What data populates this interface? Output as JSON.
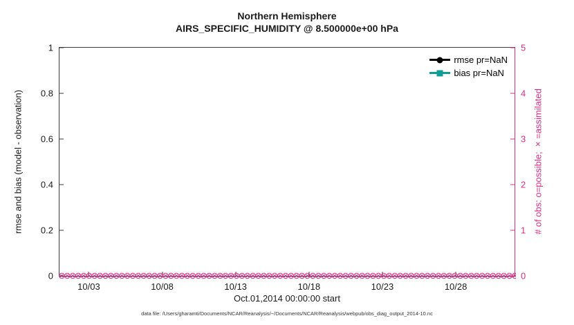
{
  "chart_data": {
    "type": "line",
    "title": "Northern Hemisphere",
    "subtitle": "AIRS_SPECIFIC_HUMIDITY @ 8.500000e+00 hPa",
    "xlabel": "Oct.01,2014 00:00:00 start",
    "ylabel_left": "rmse and bias (model - observation)",
    "ylabel_right": "# of obs: o=possible; ×=assimilated",
    "ylim_left": [
      0,
      1
    ],
    "yticks_left": [
      "0",
      "0.2",
      "0.4",
      "0.6",
      "0.8",
      "1"
    ],
    "ylim_right": [
      0,
      5
    ],
    "yticks_right": [
      "0",
      "1",
      "2",
      "3",
      "4",
      "5"
    ],
    "xticks": [
      "10/03",
      "10/08",
      "10/13",
      "10/18",
      "10/23",
      "10/28"
    ],
    "xtick_day_offsets": [
      2,
      7,
      12,
      17,
      22,
      27
    ],
    "x_axis_total_days": 31,
    "grid": "off",
    "legend_position": "top-right-inside",
    "series": [
      {
        "name": "rmse pr=NaN",
        "color": "#000000",
        "marker": "circle",
        "values": "NaN"
      },
      {
        "name": "bias pr=NaN",
        "color": "#0e9e93",
        "marker": "square",
        "values": "NaN"
      }
    ],
    "obs_counts": {
      "description": "# of obs possible (o) and assimilated (x) markers plotted at 0 on right axis for every time bin across the whole month",
      "value_right_axis": 0,
      "marker_glyph": "⊗",
      "marker_repeat": 110,
      "color": "#d92c84"
    },
    "colors": {
      "left_axis": "#1a1a1a",
      "right_axis": "#d92c84"
    }
  },
  "footer": {
    "data_file_caption": "data file: /Users/gharamti/Documents/NCAR/Reanalysis/~/Documents/NCAR/Reanalysis/webpub/obs_diag_output_2014-10.nc"
  }
}
